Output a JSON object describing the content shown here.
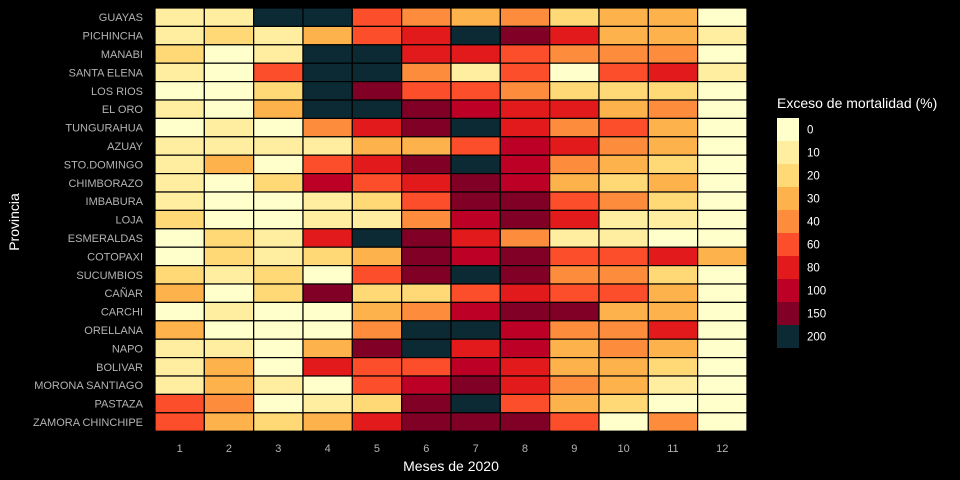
{
  "chart_data": {
    "type": "heatmap",
    "xlabel": "Meses de 2020",
    "ylabel": "Provincia",
    "x_ticks": [
      "1",
      "2",
      "3",
      "4",
      "5",
      "6",
      "7",
      "8",
      "9",
      "10",
      "11",
      "12"
    ],
    "provinces": [
      "GUAYAS",
      "PICHINCHA",
      "MANABI",
      "SANTA ELENA",
      "LOS RIOS",
      "EL ORO",
      "TUNGURAHUA",
      "AZUAY",
      "STO.DOMINGO",
      "CHIMBORAZO",
      "IMBABURA",
      "LOJA",
      "ESMERALDAS",
      "COTOPAXI",
      "SUCUMBIOS",
      "CAÑAR",
      "CARCHI",
      "ORELLANA",
      "NAPO",
      "BOLIVAR",
      "MORONA SANTIAGO",
      "PASTAZA",
      "ZAMORA CHINCHIPE"
    ],
    "legend": {
      "title": "Exceso de mortalidad (%)",
      "bins": [
        {
          "label": "0",
          "color": "#FFFFCC"
        },
        {
          "label": "10",
          "color": "#FFEDA0"
        },
        {
          "label": "20",
          "color": "#FED976"
        },
        {
          "label": "30",
          "color": "#FEB24C"
        },
        {
          "label": "40",
          "color": "#FD8D3C"
        },
        {
          "label": "60",
          "color": "#FC4E2A"
        },
        {
          "label": "80",
          "color": "#E31A1C"
        },
        {
          "label": "100",
          "color": "#BD0026"
        },
        {
          "label": "150",
          "color": "#800026"
        },
        {
          "label": "200",
          "color": "#0B2A34"
        }
      ]
    },
    "cell_bins": [
      [
        1,
        1,
        9,
        9,
        5,
        4,
        3,
        4,
        2,
        3,
        3,
        0
      ],
      [
        1,
        2,
        1,
        3,
        5,
        6,
        9,
        8,
        6,
        3,
        3,
        1
      ],
      [
        2,
        0,
        1,
        9,
        9,
        6,
        6,
        5,
        4,
        4,
        4,
        0
      ],
      [
        1,
        0,
        5,
        9,
        9,
        4,
        1,
        5,
        0,
        5,
        6,
        1
      ],
      [
        0,
        0,
        2,
        9,
        8,
        5,
        5,
        4,
        2,
        2,
        2,
        0
      ],
      [
        1,
        0,
        3,
        9,
        9,
        8,
        7,
        6,
        6,
        3,
        4,
        0
      ],
      [
        0,
        1,
        0,
        4,
        6,
        8,
        9,
        6,
        4,
        5,
        3,
        0
      ],
      [
        1,
        1,
        1,
        1,
        3,
        3,
        5,
        7,
        6,
        4,
        3,
        0
      ],
      [
        1,
        3,
        0,
        5,
        6,
        8,
        9,
        7,
        4,
        3,
        2,
        0
      ],
      [
        1,
        0,
        2,
        7,
        5,
        6,
        8,
        7,
        3,
        2,
        3,
        0
      ],
      [
        1,
        0,
        0,
        1,
        2,
        5,
        8,
        8,
        5,
        4,
        2,
        0
      ],
      [
        2,
        0,
        0,
        1,
        1,
        4,
        7,
        8,
        6,
        1,
        1,
        0
      ],
      [
        0,
        2,
        1,
        6,
        9,
        8,
        6,
        4,
        1,
        1,
        0,
        0
      ],
      [
        0,
        2,
        1,
        2,
        3,
        8,
        7,
        8,
        5,
        5,
        6,
        3
      ],
      [
        2,
        1,
        2,
        0,
        5,
        8,
        9,
        8,
        4,
        4,
        2,
        0
      ],
      [
        3,
        0,
        2,
        8,
        2,
        2,
        5,
        6,
        5,
        5,
        3,
        0
      ],
      [
        0,
        1,
        0,
        0,
        3,
        4,
        7,
        8,
        8,
        3,
        3,
        0
      ],
      [
        3,
        0,
        0,
        0,
        4,
        9,
        9,
        7,
        4,
        4,
        6,
        0
      ],
      [
        1,
        1,
        0,
        3,
        8,
        9,
        6,
        7,
        3,
        4,
        3,
        0
      ],
      [
        1,
        3,
        0,
        6,
        5,
        5,
        7,
        6,
        3,
        3,
        2,
        0
      ],
      [
        1,
        3,
        1,
        0,
        5,
        7,
        8,
        6,
        4,
        3,
        1,
        0
      ],
      [
        5,
        4,
        0,
        1,
        2,
        8,
        9,
        5,
        3,
        2,
        0,
        0
      ],
      [
        5,
        3,
        2,
        3,
        6,
        8,
        8,
        8,
        5,
        0,
        4,
        0
      ]
    ]
  }
}
